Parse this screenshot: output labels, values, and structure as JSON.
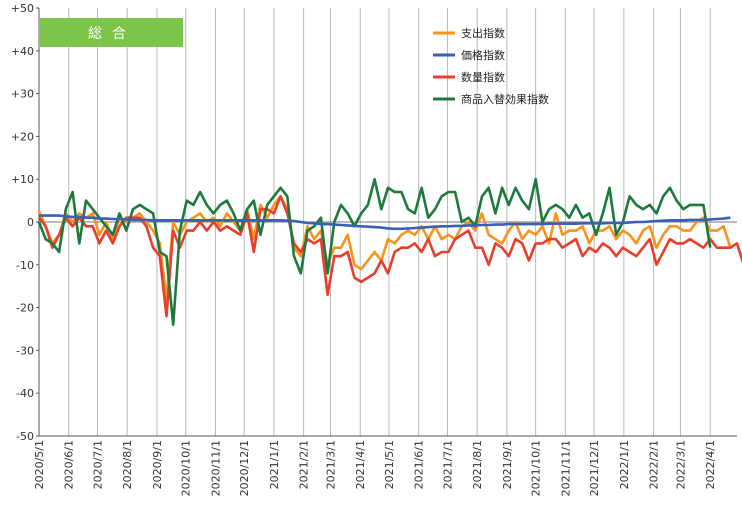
{
  "chart_data": {
    "type": "line",
    "title": "",
    "badge": "総合",
    "xlabel": "",
    "ylabel": "",
    "ylim": [
      -50,
      50
    ],
    "y_ticks": [
      50,
      40,
      30,
      20,
      10,
      0,
      -10,
      -20,
      -30,
      -40,
      -50
    ],
    "y_tick_labels": [
      "+50",
      "+40",
      "+30",
      "+20",
      "+10",
      "0",
      "-10",
      "-20",
      "-30",
      "-40",
      "-50"
    ],
    "x_tick_labels": [
      "2020/5/1",
      "2020/6/1",
      "2020/7/1",
      "2020/8/1",
      "2020/9/1",
      "2020/10/1",
      "2020/11/1",
      "2020/12/1",
      "2021/1/1",
      "2021/2/1",
      "2021/3/1",
      "2021/4/1",
      "2021/5/1",
      "2021/6/1",
      "2021/7/1",
      "2021/8/1",
      "2021/9/1",
      "2021/10/1",
      "2021/11/1",
      "2021/12/1",
      "2022/1/1",
      "2022/2/1",
      "2022/3/1",
      "2022/4/1"
    ],
    "x_tick_weeks": [
      0,
      4.43,
      8.71,
      13.14,
      17.57,
      21.86,
      26.29,
      30.57,
      35,
      39.43,
      43.43,
      47.86,
      52.14,
      56.57,
      60.86,
      65.29,
      69.71,
      74,
      78.43,
      82.71,
      87.14,
      91.57,
      95.57,
      100
    ],
    "grid": "vertical",
    "legend_position": "top-right",
    "badge_color": "#7dc44a",
    "series": [
      {
        "name": "支出指数",
        "color": "#f7931e",
        "values": [
          2.5,
          -1,
          -5,
          -3,
          2,
          0,
          2,
          1,
          2,
          -3,
          0,
          -4,
          1,
          0,
          1,
          2,
          0,
          -2,
          -5,
          -18,
          0,
          -3,
          0,
          1,
          2,
          0,
          1,
          -1,
          2,
          0,
          -2,
          3,
          -4,
          4,
          1,
          4,
          6,
          3,
          -6,
          -8,
          -1,
          -4,
          -2,
          -10,
          -6,
          -6,
          -3,
          -10,
          -11,
          -9,
          -7,
          -9,
          -4,
          -5,
          -3,
          -2,
          -3,
          -1,
          -4,
          -1,
          -4,
          -3,
          -4,
          -1,
          0,
          -2,
          2,
          -3,
          -4,
          -5,
          -2,
          0,
          -4,
          -2,
          -3,
          -1,
          -5,
          2,
          -3,
          -2,
          -2,
          -1,
          -5,
          -2,
          -2,
          -1,
          -4,
          -2,
          -3,
          -5,
          -2,
          -1,
          -6,
          -3,
          -1,
          -1,
          -2,
          -2,
          0,
          1,
          -2,
          -2,
          -1,
          -6
        ]
      },
      {
        "name": "価格指数",
        "color": "#3a5fb3",
        "values": [
          1.5,
          1.5,
          1.5,
          1.5,
          1.3,
          1.2,
          1.2,
          1,
          1,
          0.8,
          0.8,
          0.7,
          0.7,
          0.6,
          0.5,
          0.5,
          0.5,
          0.4,
          0.4,
          0.4,
          0.4,
          0.4,
          0.4,
          0.4,
          0.4,
          0.4,
          0.4,
          0.4,
          0.4,
          0.4,
          0.4,
          0.4,
          0.4,
          0.4,
          0.4,
          0.4,
          0.4,
          0.3,
          0.2,
          0,
          -0.2,
          -0.3,
          -0.5,
          -0.5,
          -0.6,
          -0.7,
          -0.8,
          -0.9,
          -1,
          -1.1,
          -1.2,
          -1.3,
          -1.5,
          -1.6,
          -1.6,
          -1.5,
          -1.4,
          -1.3,
          -1.2,
          -1.1,
          -1,
          -1,
          -0.9,
          -0.9,
          -0.8,
          -0.8,
          -0.7,
          -0.7,
          -0.6,
          -0.6,
          -0.5,
          -0.5,
          -0.5,
          -0.5,
          -0.5,
          -0.5,
          -0.4,
          -0.4,
          -0.4,
          -0.4,
          -0.4,
          -0.3,
          -0.3,
          -0.3,
          -0.3,
          -0.2,
          -0.2,
          -0.2,
          -0.1,
          0,
          0,
          0.1,
          0.2,
          0.3,
          0.4,
          0.4,
          0.4,
          0.5,
          0.5,
          0.5,
          0.6,
          0.7,
          0.8,
          1
        ]
      },
      {
        "name": "数量指数",
        "color": "#e83e2e",
        "values": [
          1,
          -1,
          -6,
          -3,
          1,
          -1,
          1,
          -1,
          -1,
          -5,
          -2,
          -5,
          -1,
          1,
          1,
          1,
          -1,
          -6,
          -8,
          -22,
          -2,
          -6,
          -2,
          -2,
          0,
          -2,
          0,
          -2,
          -1,
          -2,
          -3,
          2,
          -7,
          3,
          3,
          2,
          6,
          2,
          -5,
          -7,
          -4,
          -5,
          -4,
          -17,
          -8,
          -8,
          -7,
          -13,
          -14,
          -13,
          -12,
          -9,
          -12,
          -7,
          -6,
          -6,
          -5,
          -7,
          -4,
          -8,
          -7,
          -7,
          -4,
          -3,
          -2,
          -6,
          -6,
          -10,
          -5,
          -6,
          -8,
          -4,
          -5,
          -9,
          -5,
          -5,
          -4,
          -4,
          -6,
          -5,
          -4,
          -8,
          -6,
          -7,
          -5,
          -6,
          -8,
          -6,
          -7,
          -8,
          -6,
          -4,
          -10,
          -7,
          -4,
          -5,
          -5,
          -4,
          -5,
          -6,
          -4,
          -6,
          -6,
          -6,
          -5,
          -10
        ]
      },
      {
        "name": "商品入替効果指数",
        "color": "#1e7a3c",
        "values": [
          0,
          -4,
          -5,
          -7,
          3,
          7,
          -5,
          5,
          3,
          1,
          -1,
          -3,
          2,
          -2,
          3,
          4,
          3,
          2,
          -7,
          -8,
          -24,
          -2,
          5,
          4,
          7,
          4,
          2,
          4,
          5,
          2,
          -2,
          3,
          5,
          -3,
          4,
          6,
          8,
          6,
          -8,
          -12,
          -2,
          -1,
          1,
          -12,
          0,
          4,
          2,
          -1,
          2,
          4,
          10,
          3,
          8,
          7,
          7,
          3,
          2,
          8,
          1,
          3,
          6,
          7,
          7,
          0,
          1,
          -1,
          6,
          8,
          2,
          8,
          4,
          8,
          5,
          3,
          10,
          0,
          3,
          4,
          3,
          1,
          4,
          1,
          2,
          -3,
          2,
          8,
          -3,
          0,
          6,
          4,
          3,
          4,
          2,
          6,
          8,
          5,
          3,
          4,
          4,
          4,
          -6
        ]
      }
    ]
  }
}
